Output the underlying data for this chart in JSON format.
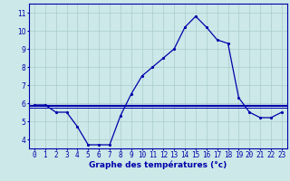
{
  "background_color": "#cce8e8",
  "grid_color": "#aacccc",
  "line_color": "#0000aa",
  "axis_bg_color": "#cce8e8",
  "hours": [
    0,
    1,
    2,
    3,
    4,
    5,
    6,
    7,
    8,
    9,
    10,
    11,
    12,
    13,
    14,
    15,
    16,
    17,
    18,
    19,
    20,
    21,
    22,
    23
  ],
  "temp_main": [
    5.9,
    5.9,
    5.5,
    5.5,
    4.7,
    3.7,
    3.7,
    3.7,
    5.3,
    6.5,
    7.5,
    8.0,
    8.5,
    9.0,
    10.2,
    10.8,
    10.2,
    9.5,
    9.3,
    6.3,
    5.5,
    5.2,
    5.2,
    5.5
  ],
  "hline1": 5.9,
  "hline2": 5.85,
  "hline3": 5.75,
  "ylim_min": 3.5,
  "ylim_max": 11.5,
  "yticks": [
    4,
    5,
    6,
    7,
    8,
    9,
    10,
    11
  ],
  "xlabel": "Graphe des températures (°c)",
  "tick_fontsize": 5.5,
  "xlabel_fontsize": 6.5
}
